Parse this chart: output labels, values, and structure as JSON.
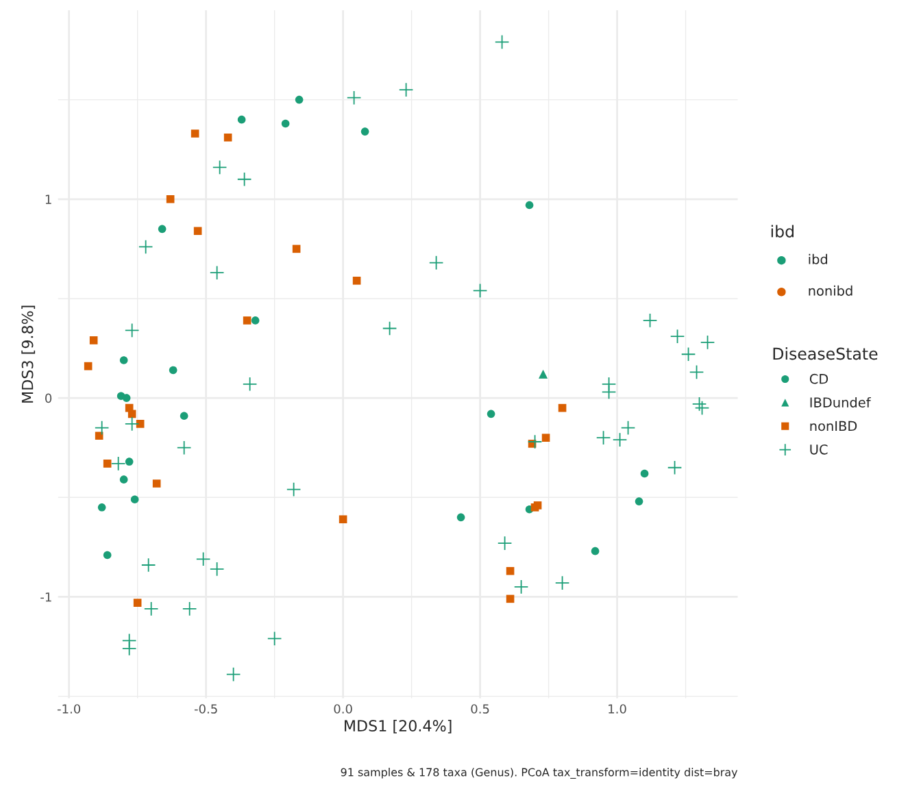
{
  "chart_data": {
    "type": "scatter",
    "xlabel": "MDS1 [20.4%]",
    "ylabel": "MDS3 [9.8%]",
    "annotations": [
      "91 samples & 178 taxa (Genus). PCoA tax_transform=identity dist=bray",
      "ibd",
      "nonibd"
    ],
    "xlim": [
      -1.04,
      1.44
    ],
    "ylim": [
      -1.51,
      1.95
    ],
    "xticks": [
      {
        "value": -1,
        "label": "-1.0"
      },
      {
        "value": -0.75,
        "label": null
      },
      {
        "value": -0.5,
        "label": "-0.5"
      },
      {
        "value": -0.25,
        "label": null
      },
      {
        "value": 0,
        "label": "0.0"
      },
      {
        "value": 0.25,
        "label": null
      },
      {
        "value": 0.5,
        "label": "0.5"
      },
      {
        "value": 0.75,
        "label": null
      },
      {
        "value": 1,
        "label": "1.0"
      },
      {
        "value": 1.25,
        "label": null
      }
    ],
    "yticks": [
      {
        "value": -1.5,
        "label": null
      },
      -1,
      {
        "value": -0.5,
        "label": null
      },
      0,
      {
        "value": 0.5,
        "label": null
      },
      1,
      {
        "value": 1.5,
        "label": null
      }
    ],
    "grid": true,
    "legend": "right",
    "legend_title": [
      "ibd",
      "DiseaseState"
    ],
    "colors": [
      "#1b9e77",
      "#d95f02"
    ],
    "series": [
      {
        "name": "CD",
        "color": "#1b9e77",
        "marker": "circle",
        "x": [
          -0.16,
          -0.37,
          -0.21,
          0.08,
          0.68,
          -0.66,
          -0.32,
          -0.8,
          -0.62,
          -0.81,
          -0.79,
          -0.58,
          0.54,
          -0.78,
          -0.8,
          -0.76,
          -0.88,
          1.1,
          1.08,
          0.43,
          0.68,
          0.92,
          -0.86
        ],
        "values": [
          1.5,
          1.4,
          1.38,
          1.34,
          0.97,
          0.85,
          0.39,
          0.19,
          0.14,
          0.01,
          0.0,
          -0.09,
          -0.08,
          -0.32,
          -0.41,
          -0.51,
          -0.55,
          -0.38,
          -0.52,
          -0.6,
          -0.56,
          -0.77,
          -0.79
        ]
      },
      {
        "name": "IBDundef",
        "color": "#1b9e77",
        "marker": "triangle",
        "x": [
          0.73
        ],
        "values": [
          0.12
        ]
      },
      {
        "name": "nonIBD",
        "color": "#d95f02",
        "marker": "square",
        "x": [
          -0.54,
          -0.42,
          -0.63,
          -0.53,
          -0.17,
          0.05,
          -0.35,
          -0.91,
          -0.93,
          -0.78,
          -0.77,
          -0.74,
          -0.89,
          -0.86,
          -0.68,
          0.0,
          0.8,
          0.74,
          0.69,
          0.71,
          0.7,
          0.61,
          0.61,
          -0.75
        ],
        "values": [
          1.33,
          1.31,
          1.0,
          0.84,
          0.75,
          0.59,
          0.39,
          0.29,
          0.16,
          -0.05,
          -0.08,
          -0.13,
          -0.19,
          -0.33,
          -0.43,
          -0.61,
          -0.05,
          -0.2,
          -0.23,
          -0.54,
          -0.55,
          -0.87,
          -1.01,
          -1.03
        ]
      },
      {
        "name": "UC",
        "color": "#1b9e77",
        "marker": "cross",
        "x": [
          0.58,
          0.23,
          0.04,
          -0.45,
          -0.36,
          -0.72,
          -0.46,
          0.34,
          0.5,
          0.17,
          -0.77,
          -0.34,
          -0.88,
          -0.77,
          -0.82,
          -0.58,
          -0.18,
          1.12,
          1.22,
          1.26,
          1.29,
          1.33,
          0.97,
          0.97,
          1.3,
          1.31,
          1.04,
          0.95,
          1.01,
          0.7,
          1.21,
          0.59,
          0.65,
          0.8,
          -0.71,
          -0.51,
          -0.46,
          -0.7,
          -0.56,
          -0.78,
          -0.78,
          -0.25,
          -0.4
        ],
        "values": [
          1.79,
          1.55,
          1.51,
          1.16,
          1.1,
          0.76,
          0.63,
          0.68,
          0.54,
          0.35,
          0.34,
          0.07,
          -0.15,
          -0.13,
          -0.33,
          -0.25,
          -0.46,
          0.39,
          0.31,
          0.22,
          0.13,
          0.28,
          0.07,
          0.03,
          -0.03,
          -0.05,
          -0.15,
          -0.2,
          -0.21,
          -0.22,
          -0.35,
          -0.73,
          -0.95,
          -0.93,
          -0.84,
          -0.81,
          -0.86,
          -1.06,
          -1.06,
          -1.22,
          -1.26,
          -1.21,
          -1.39
        ]
      }
    ]
  }
}
